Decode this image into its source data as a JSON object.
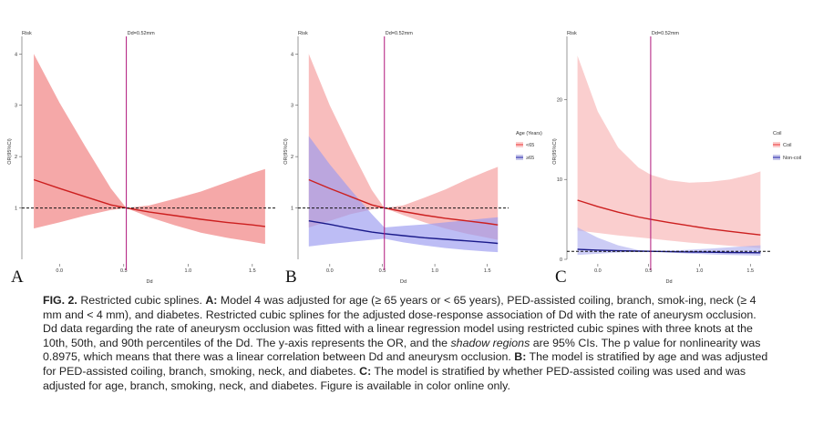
{
  "panels": [
    {
      "id": "A",
      "letter": "A",
      "risk_label": "Risk",
      "cutoff_label": "Dd=0.52mm",
      "ylabel": "OR(95%CI)",
      "xlabel": "Dd",
      "legend": null,
      "chart_data": {
        "type": "line",
        "xlim": [
          -0.25,
          1.65
        ],
        "ylim": [
          0,
          4.2
        ],
        "x_ticks": [
          0.0,
          0.5,
          1.0,
          1.5
        ],
        "x_tick_labels": [
          "0.0",
          "0.5",
          "1.0",
          "1.5"
        ],
        "y_ticks": [
          1,
          2,
          3,
          4
        ],
        "y_tick_labels": [
          "1",
          "2",
          "3",
          "4"
        ],
        "reference_y": 1,
        "cutoff_x": 0.52,
        "x": [
          -0.2,
          0.0,
          0.2,
          0.4,
          0.52,
          0.7,
          0.9,
          1.1,
          1.3,
          1.5,
          1.6
        ],
        "series": [
          {
            "color": "#cc1f1f",
            "band_color": "#f07a7a",
            "values": [
              1.55,
              1.38,
              1.22,
              1.06,
              1.0,
              0.92,
              0.85,
              0.78,
              0.72,
              0.67,
              0.64
            ],
            "lower": [
              0.6,
              0.72,
              0.85,
              0.96,
              1.0,
              0.82,
              0.66,
              0.52,
              0.42,
              0.34,
              0.3
            ],
            "upper": [
              4.0,
              3.05,
              2.2,
              1.38,
              1.0,
              1.05,
              1.18,
              1.32,
              1.5,
              1.68,
              1.76
            ]
          }
        ]
      }
    },
    {
      "id": "B",
      "letter": "B",
      "risk_label": "Risk",
      "cutoff_label": "Dd=0.52mm",
      "ylabel": "OR(95%CI)",
      "xlabel": "Dd",
      "legend": {
        "title": "Age (Years)",
        "items": [
          {
            "label": "<65",
            "color": "#e33"
          },
          {
            "label": "≥65",
            "color": "#2222aa"
          }
        ]
      },
      "chart_data": {
        "type": "line",
        "xlim": [
          -0.25,
          1.65
        ],
        "ylim": [
          0,
          4.2
        ],
        "x_ticks": [
          0.0,
          0.5,
          1.0,
          1.5
        ],
        "x_tick_labels": [
          "0.0",
          "0.5",
          "1.0",
          "1.5"
        ],
        "y_ticks": [
          1,
          2,
          3,
          4
        ],
        "y_tick_labels": [
          "1",
          "2",
          "3",
          "4"
        ],
        "reference_y": 1,
        "cutoff_x": 0.52,
        "x": [
          -0.2,
          0.0,
          0.2,
          0.4,
          0.52,
          0.7,
          0.9,
          1.1,
          1.3,
          1.5,
          1.6
        ],
        "series": [
          {
            "name": "<65",
            "color": "#cc1f1f",
            "band_color": "#f49a9a",
            "values": [
              1.55,
              1.38,
              1.22,
              1.06,
              1.0,
              0.93,
              0.86,
              0.8,
              0.75,
              0.7,
              0.67
            ],
            "lower": [
              0.62,
              0.75,
              0.88,
              0.97,
              1.0,
              0.86,
              0.72,
              0.6,
              0.5,
              0.42,
              0.38
            ],
            "upper": [
              4.0,
              3.0,
              2.15,
              1.35,
              1.0,
              1.05,
              1.2,
              1.36,
              1.55,
              1.72,
              1.8
            ]
          },
          {
            "name": "≥65",
            "color": "#1a1a8a",
            "band_color": "#9a9af0",
            "values": [
              0.75,
              0.68,
              0.6,
              0.53,
              0.5,
              0.46,
              0.42,
              0.39,
              0.36,
              0.33,
              0.31
            ],
            "lower": [
              0.25,
              0.3,
              0.34,
              0.38,
              0.4,
              0.33,
              0.27,
              0.22,
              0.18,
              0.15,
              0.14
            ],
            "upper": [
              2.4,
              1.85,
              1.35,
              0.88,
              0.62,
              0.65,
              0.68,
              0.72,
              0.76,
              0.8,
              0.82
            ]
          }
        ]
      }
    },
    {
      "id": "C",
      "letter": "C",
      "risk_label": "Risk",
      "cutoff_label": "Dd=0.52mm",
      "ylabel": "OR(95%CI)",
      "xlabel": "Dd",
      "legend": {
        "title": "Coil",
        "items": [
          {
            "label": "Coil",
            "color": "#e33"
          },
          {
            "label": "Non-coil",
            "color": "#2222aa"
          }
        ]
      },
      "chart_data": {
        "type": "line",
        "xlim": [
          -0.25,
          1.65
        ],
        "ylim": [
          0,
          27
        ],
        "x_ticks": [
          0.0,
          0.5,
          1.0,
          1.5
        ],
        "x_tick_labels": [
          "0.0",
          "0.5",
          "1.0",
          "1.5"
        ],
        "y_ticks": [
          0,
          10,
          20
        ],
        "y_tick_labels": [
          "0",
          "10",
          "20"
        ],
        "reference_y": 1,
        "cutoff_x": 0.52,
        "x": [
          -0.2,
          0.0,
          0.2,
          0.4,
          0.52,
          0.7,
          0.9,
          1.1,
          1.3,
          1.5,
          1.6
        ],
        "series": [
          {
            "name": "Coil",
            "color": "#cc1f1f",
            "band_color": "#f7b3b3",
            "values": [
              7.4,
              6.6,
              5.9,
              5.3,
              5.0,
              4.6,
              4.2,
              3.8,
              3.5,
              3.2,
              3.05
            ],
            "lower": [
              3.6,
              3.3,
              3.0,
              2.75,
              2.6,
              2.35,
              2.1,
              1.9,
              1.7,
              1.5,
              1.4
            ],
            "upper": [
              25.5,
              18.5,
              14.0,
              11.5,
              10.6,
              9.9,
              9.6,
              9.7,
              10.0,
              10.6,
              11.0
            ]
          },
          {
            "name": "Non-coil",
            "color": "#1a1a8a",
            "band_color": "#b0b0f0",
            "values": [
              1.25,
              1.15,
              1.07,
              1.02,
              1.0,
              0.96,
              0.92,
              0.89,
              0.86,
              0.83,
              0.82
            ],
            "lower": [
              0.55,
              0.7,
              0.85,
              0.96,
              1.0,
              0.85,
              0.72,
              0.62,
              0.54,
              0.48,
              0.45
            ],
            "upper": [
              4.0,
              2.7,
              1.75,
              1.15,
              1.0,
              1.08,
              1.2,
              1.34,
              1.5,
              1.68,
              1.76
            ]
          }
        ]
      }
    }
  ],
  "caption": {
    "fig_label": "FIG. 2.",
    "intro": " Restricted cubic splines. ",
    "a_label": "A:",
    "a_text": " Model 4 was adjusted for age (≥ 65 years or < 65 years), PED-assisted coiling, branch, smok-ing, neck (≥ 4 mm and < 4 mm), and diabetes. Restricted cubic splines for the adjusted dose-response association of Dd with the rate of aneurysm occlusion. Dd data regarding the rate of aneurysm occlusion was fitted with a linear regression model using restricted cubic spines with three knots at the 10th, 50th, and 90th percentiles of the Dd. The y-axis represents the OR, and the ",
    "shadow_italic": "shadow regions",
    "a_text2": " are 95% CIs. The p value for nonlinearity was 0.8975, which means that there was a linear correlation between Dd and aneurysm occlusion. ",
    "b_label": "B:",
    "b_text": " The model is stratified by age and was adjusted for PED-assisted coiling, branch, smoking, neck, and diabetes. ",
    "c_label": "C:",
    "c_text": " The model is stratified by whether PED-assisted coiling was used and was adjusted for age, branch, smoking, neck, and diabetes. Figure is available in color online only."
  }
}
